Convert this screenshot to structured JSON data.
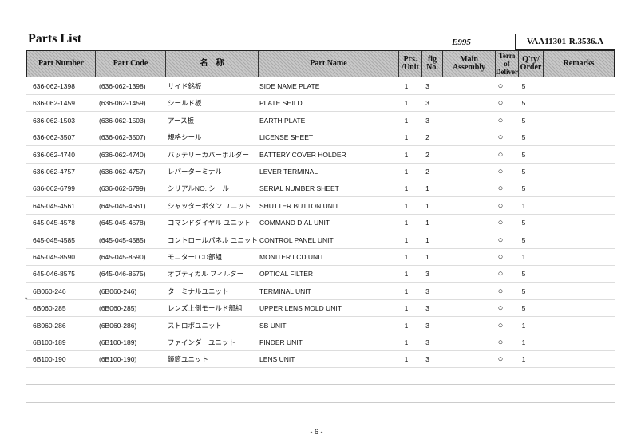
{
  "title": "Parts List",
  "model": "E995",
  "doc_number": "VAA11301-R.3536.A",
  "columns": [
    "Part Number",
    "Part Code",
    "名　称",
    "Part Name",
    "Pcs. /Unit",
    "fig No.",
    "Main Assembly",
    "Term of Deliver",
    "Q'ty/ Order",
    "Remarks"
  ],
  "rows": [
    {
      "mark": "",
      "pn": "636-062-1398",
      "pc": "(636-062-1398)",
      "jp": "サイド銘板",
      "name": "SIDE NAME PLATE",
      "pcs": "1",
      "fig": "3",
      "term": "○",
      "qty": "5"
    },
    {
      "mark": "",
      "pn": "636-062-1459",
      "pc": "(636-062-1459)",
      "jp": "シールド板",
      "name": "PLATE SHILD",
      "pcs": "1",
      "fig": "3",
      "term": "○",
      "qty": "5"
    },
    {
      "mark": "",
      "pn": "636-062-1503",
      "pc": "(636-062-1503)",
      "jp": "アース板",
      "name": "EARTH PLATE",
      "pcs": "1",
      "fig": "3",
      "term": "○",
      "qty": "5"
    },
    {
      "mark": "",
      "pn": "636-062-3507",
      "pc": "(636-062-3507)",
      "jp": "規格シール",
      "name": "LICENSE SHEET",
      "pcs": "1",
      "fig": "2",
      "term": "○",
      "qty": "5"
    },
    {
      "mark": "",
      "pn": "636-062-4740",
      "pc": "(636-062-4740)",
      "jp": "バッテリーカバーホルダー",
      "name": "BATTERY COVER HOLDER",
      "pcs": "1",
      "fig": "2",
      "term": "○",
      "qty": "5"
    },
    {
      "mark": "",
      "pn": "636-062-4757",
      "pc": "(636-062-4757)",
      "jp": "レバーターミナル",
      "name": "LEVER TERMINAL",
      "pcs": "1",
      "fig": "2",
      "term": "○",
      "qty": "5"
    },
    {
      "mark": "",
      "pn": "636-062-6799",
      "pc": "(636-062-6799)",
      "jp": "シリアルNO. シール",
      "name": "SERIAL NUMBER SHEET",
      "pcs": "1",
      "fig": "1",
      "term": "○",
      "qty": "5"
    },
    {
      "mark": "",
      "pn": "645-045-4561",
      "pc": "(645-045-4561)",
      "jp": "シャッターボタン ユニット",
      "name": "SHUTTER BUTTON UNIT",
      "pcs": "1",
      "fig": "1",
      "term": "○",
      "qty": "1"
    },
    {
      "mark": "",
      "pn": "645-045-4578",
      "pc": "(645-045-4578)",
      "jp": "コマンドダイヤル ユニット",
      "name": "COMMAND DIAL UNIT",
      "pcs": "1",
      "fig": "1",
      "term": "○",
      "qty": "5"
    },
    {
      "mark": "",
      "pn": "645-045-4585",
      "pc": "(645-045-4585)",
      "jp": "コントロールパネル ユニット",
      "name": "CONTROL PANEL UNIT",
      "pcs": "1",
      "fig": "1",
      "term": "○",
      "qty": "5"
    },
    {
      "mark": "",
      "pn": "645-045-8590",
      "pc": "(645-045-8590)",
      "jp": "モニターLCD部組",
      "name": "MONITER LCD UNIT",
      "pcs": "1",
      "fig": "1",
      "term": "○",
      "qty": "1"
    },
    {
      "mark": "",
      "pn": "645-046-8575",
      "pc": "(645-046-8575)",
      "jp": "オプティカル フィルター",
      "name": "OPTICAL FILTER",
      "pcs": "1",
      "fig": "3",
      "term": "○",
      "qty": "5"
    },
    {
      "mark": "*",
      "pn": "6B060-246",
      "pc": "(6B060-246)",
      "jp": "ターミナルユニット",
      "name": "TERMINAL UNIT",
      "pcs": "1",
      "fig": "3",
      "term": "○",
      "qty": "5"
    },
    {
      "mark": "",
      "pn": "6B060-285",
      "pc": "(6B060-285)",
      "jp": "レンズ上側モールド部組",
      "name": "UPPER LENS MOLD UNIT",
      "pcs": "1",
      "fig": "3",
      "term": "○",
      "qty": "5"
    },
    {
      "mark": "",
      "pn": "6B060-286",
      "pc": "(6B060-286)",
      "jp": "ストロボユニット",
      "name": "SB UNIT",
      "pcs": "1",
      "fig": "3",
      "term": "○",
      "qty": "1"
    },
    {
      "mark": "",
      "pn": "6B100-189",
      "pc": "(6B100-189)",
      "jp": "ファインダーユニット",
      "name": "FINDER UNIT",
      "pcs": "1",
      "fig": "3",
      "term": "○",
      "qty": "1"
    },
    {
      "mark": "",
      "pn": "6B100-190",
      "pc": "(6B100-190)",
      "jp": "鏡筒ユニット",
      "name": "LENS UNIT",
      "pcs": "1",
      "fig": "3",
      "term": "○",
      "qty": "1"
    }
  ],
  "page_number": "- 6 -"
}
